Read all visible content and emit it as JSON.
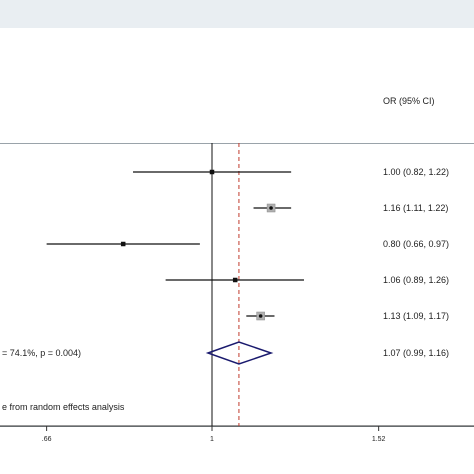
{
  "chart_data": {
    "type": "forest",
    "column_header": "OR (95% CI)",
    "x_axis": {
      "scale": "log",
      "ticks": [
        ".66",
        "1",
        "1.52"
      ],
      "tick_values": [
        0.66,
        1,
        1.52
      ]
    },
    "null_line": 1,
    "pooled_line": 1.07,
    "rows": [
      {
        "or": 1.0,
        "lo": 0.82,
        "hi": 1.22,
        "label": "1.00 (0.82, 1.22)",
        "marker": "square-small"
      },
      {
        "or": 1.16,
        "lo": 1.11,
        "hi": 1.22,
        "label": "1.16 (1.11, 1.22)",
        "marker": "square-large"
      },
      {
        "or": 0.8,
        "lo": 0.66,
        "hi": 0.97,
        "label": "0.80 (0.66, 0.97)",
        "marker": "square-small"
      },
      {
        "or": 1.06,
        "lo": 0.89,
        "hi": 1.26,
        "label": "1.06 (0.89, 1.26)",
        "marker": "square-small"
      },
      {
        "or": 1.13,
        "lo": 1.09,
        "hi": 1.17,
        "label": "1.13 (1.09, 1.17)",
        "marker": "square-large"
      }
    ],
    "overall": {
      "or": 1.07,
      "lo": 0.99,
      "hi": 1.16,
      "label": "1.07 (0.99, 1.16)",
      "left_text": "= 74.1%, p = 0.004)"
    },
    "footnote": "e from random effects analysis",
    "colors": {
      "diamond": "#1a1a6e",
      "pooled_line": "#c0392b",
      "box_fill": "#b0b0b0",
      "axis": "#333333"
    }
  }
}
